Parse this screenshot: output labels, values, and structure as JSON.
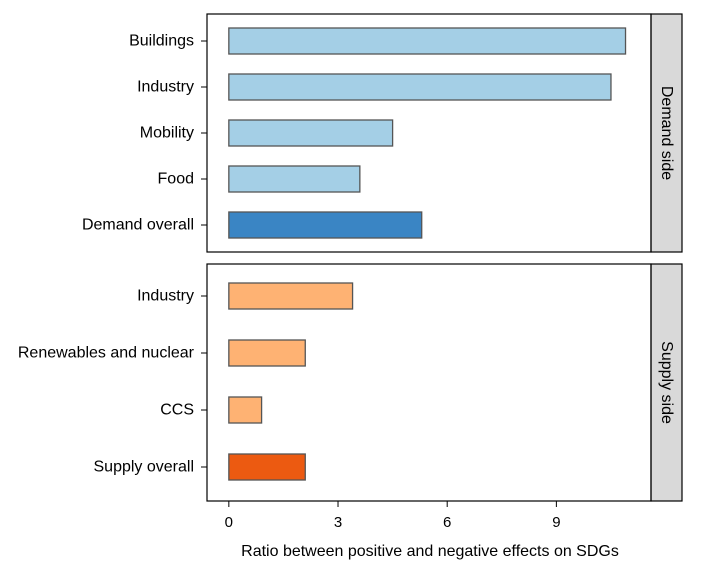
{
  "chart_data": {
    "type": "bar",
    "orientation": "horizontal",
    "xlabel": "Ratio between positive and negative effects on SDGs",
    "xlim": [
      -0.6,
      11.6
    ],
    "xticks": [
      0,
      3,
      6,
      9
    ],
    "grid": false,
    "panels": [
      {
        "strip_label": "Demand side",
        "categories": [
          "Buildings",
          "Industry",
          "Mobility",
          "Food",
          "Demand overall"
        ],
        "values": [
          10.9,
          10.5,
          4.5,
          3.6,
          5.3
        ],
        "colors": [
          "#a4cfe6",
          "#a4cfe6",
          "#a4cfe6",
          "#a4cfe6",
          "#3a85c4"
        ]
      },
      {
        "strip_label": "Supply side",
        "categories": [
          "Industry",
          "Renewables and nuclear",
          "CCS",
          "Supply overall"
        ],
        "values": [
          3.4,
          2.1,
          0.9,
          2.1
        ],
        "colors": [
          "#feb273",
          "#feb273",
          "#feb273",
          "#ec5a11"
        ]
      }
    ]
  }
}
